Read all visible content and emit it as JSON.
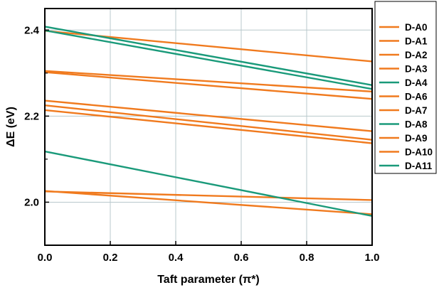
{
  "chart_data": {
    "type": "line",
    "title": "",
    "xlabel": "Taft parameter (π*)",
    "ylabel": "ΔE (eV)",
    "xlim": [
      0.0,
      1.0
    ],
    "ylim": [
      1.9,
      2.45
    ],
    "xticks": [
      "0.0",
      "0.2",
      "0.4",
      "0.6",
      "0.8",
      "1.0"
    ],
    "yticks": [
      "2.0",
      "2.2",
      "2.4"
    ],
    "grid": true,
    "legend_position": "right",
    "colors": {
      "orange": "#f07a1e",
      "green": "#1a9a7a",
      "grid": "#b8c8cc",
      "axis": "#000000"
    },
    "series": [
      {
        "name": "D-A0",
        "color": "orange",
        "x": [
          0.0,
          1.0
        ],
        "y": [
          2.398,
          2.327
        ]
      },
      {
        "name": "D-A1",
        "color": "orange",
        "x": [
          0.0,
          1.0
        ],
        "y": [
          2.305,
          2.257
        ]
      },
      {
        "name": "D-A2",
        "color": "orange",
        "x": [
          0.0,
          1.0
        ],
        "y": [
          2.302,
          2.24
        ]
      },
      {
        "name": "D-A3",
        "color": "orange",
        "x": [
          0.0,
          1.0
        ],
        "y": [
          2.236,
          2.165
        ]
      },
      {
        "name": "D-A4",
        "color": "green",
        "x": [
          0.0,
          1.0
        ],
        "y": [
          2.408,
          2.272
        ]
      },
      {
        "name": "D-A6",
        "color": "orange",
        "x": [
          0.0,
          1.0
        ],
        "y": [
          2.225,
          2.145
        ]
      },
      {
        "name": "D-A7",
        "color": "orange",
        "x": [
          0.0,
          1.0
        ],
        "y": [
          2.214,
          2.137
        ]
      },
      {
        "name": "D-A8",
        "color": "green",
        "x": [
          0.0,
          1.0
        ],
        "y": [
          2.399,
          2.263
        ]
      },
      {
        "name": "D-A9",
        "color": "orange",
        "x": [
          0.0,
          1.0
        ],
        "y": [
          2.025,
          2.005
        ]
      },
      {
        "name": "D-A10",
        "color": "orange",
        "x": [
          0.0,
          1.0
        ],
        "y": [
          2.026,
          1.972
        ]
      },
      {
        "name": "D-A11",
        "color": "green",
        "x": [
          0.0,
          1.0
        ],
        "y": [
          2.118,
          1.968
        ]
      }
    ]
  }
}
